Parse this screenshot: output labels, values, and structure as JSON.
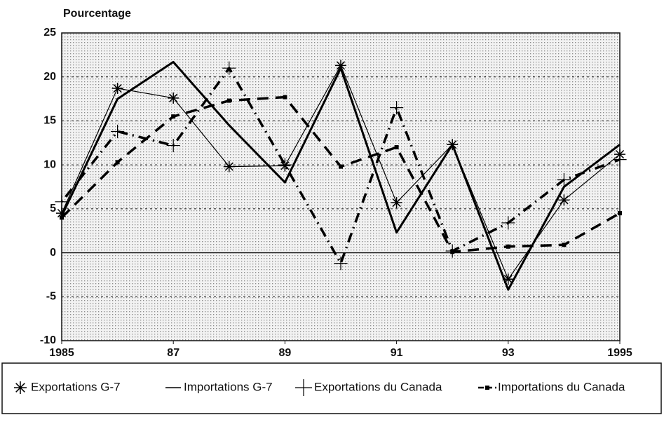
{
  "chart_data": {
    "type": "line",
    "y_axis_label": "Pourcentage",
    "x": [
      1985,
      1986,
      1987,
      1988,
      1989,
      1990,
      1991,
      1992,
      1993,
      1994,
      1995
    ],
    "xlim": [
      1985,
      1995
    ],
    "xticks": [
      1985,
      {
        "value": 1987,
        "label": "87"
      },
      {
        "value": 1989,
        "label": "89"
      },
      {
        "value": 1991,
        "label": "91"
      },
      {
        "value": 1993,
        "label": "93"
      },
      1995
    ],
    "ylim": [
      -10,
      25
    ],
    "yticks": [
      -10,
      -5,
      0,
      5,
      10,
      15,
      20,
      25
    ],
    "grid": true,
    "legend": "bottom",
    "series": [
      {
        "name": "Exportations G-7",
        "color": "#000000",
        "marker": "asterisk",
        "style": "thin",
        "values": [
          4.5,
          18.7,
          17.6,
          9.8,
          9.9,
          21.3,
          5.7,
          12.3,
          -3.0,
          6.0,
          11.2
        ]
      },
      {
        "name": "Importations G-7",
        "color": "#000000",
        "marker": "none",
        "style": "thick",
        "values": [
          4.2,
          17.5,
          21.7,
          14.5,
          8.0,
          21.0,
          2.3,
          12.3,
          -4.2,
          7.5,
          12.3
        ]
      },
      {
        "name": "Exportations du Canada",
        "color": "#000000",
        "marker": "plus",
        "style": "dashdot",
        "values": [
          5.8,
          13.8,
          12.2,
          21.0,
          10.0,
          -1.2,
          16.5,
          0.2,
          3.4,
          8.3,
          10.6
        ]
      },
      {
        "name": "Importations du Canada",
        "color": "#000000",
        "marker": "square",
        "style": "dashed",
        "values": [
          4.0,
          10.3,
          15.5,
          17.3,
          17.7,
          9.8,
          12.0,
          0.1,
          0.7,
          0.9,
          4.5
        ]
      }
    ]
  }
}
